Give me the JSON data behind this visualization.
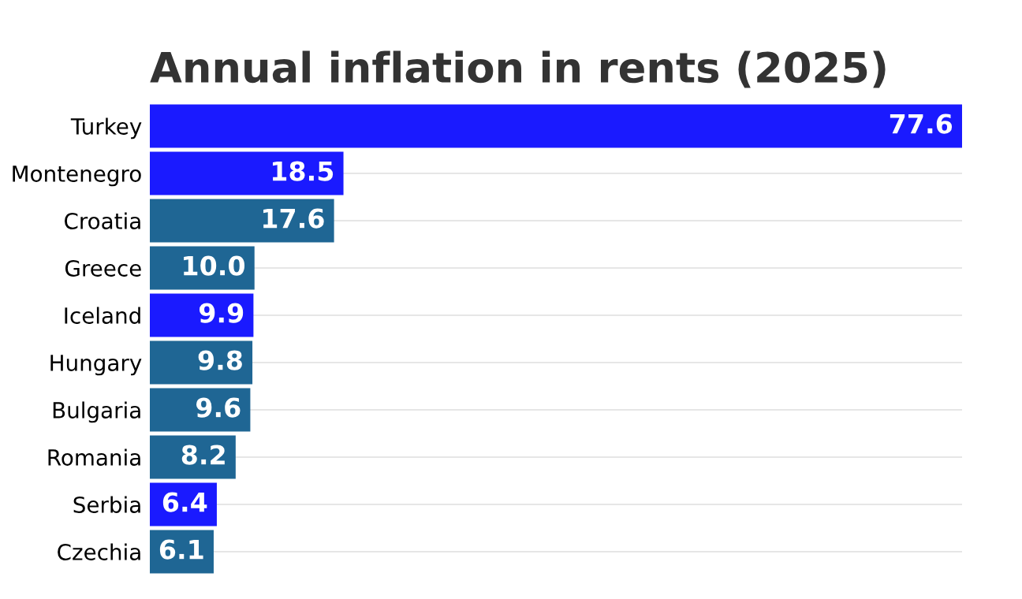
{
  "chart_data": {
    "type": "bar",
    "orientation": "horizontal",
    "title": "Annual inflation in rents (2025)",
    "categories": [
      "Turkey",
      "Montenegro",
      "Croatia",
      "Greece",
      "Iceland",
      "Hungary",
      "Bulgaria",
      "Romania",
      "Serbia",
      "Czechia"
    ],
    "values": [
      77.6,
      18.5,
      17.6,
      10.0,
      9.9,
      9.8,
      9.6,
      8.2,
      6.4,
      6.1
    ],
    "value_labels": [
      "77.6",
      "18.5",
      "17.6",
      "10.0",
      "9.9",
      "9.8",
      "9.6",
      "8.2",
      "6.4",
      "6.1"
    ],
    "colors": [
      "#1a1aff",
      "#1a1aff",
      "#1f6694",
      "#1f6694",
      "#1a1aff",
      "#1f6694",
      "#1f6694",
      "#1f6694",
      "#1a1aff",
      "#1f6694"
    ],
    "grid": "y",
    "tick_labels": "y"
  }
}
